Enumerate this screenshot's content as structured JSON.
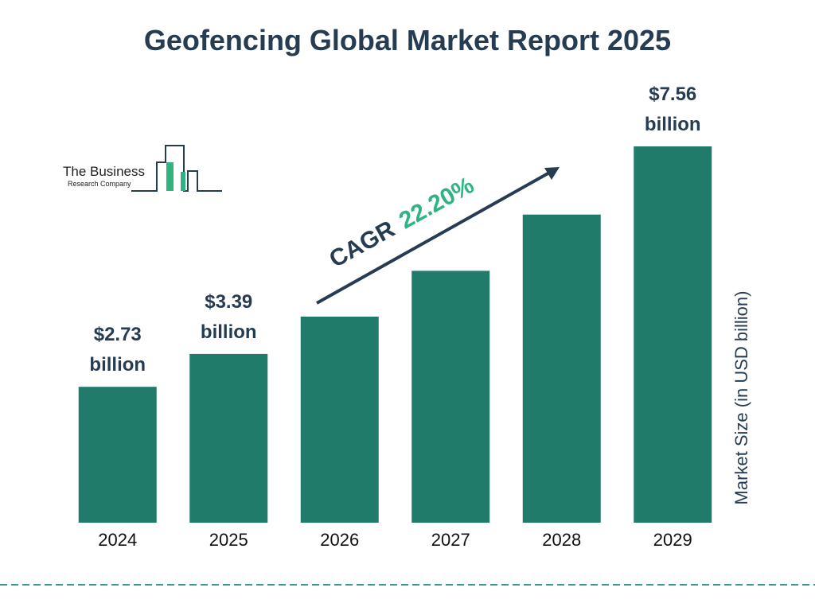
{
  "chart_data": {
    "type": "bar",
    "title": "Geofencing Global Market Report 2025",
    "categories": [
      "2024",
      "2025",
      "2026",
      "2027",
      "2028",
      "2029"
    ],
    "values": [
      2.73,
      3.39,
      4.14,
      5.06,
      6.19,
      7.56
    ],
    "value_labels": [
      "$2.73 billion",
      "$3.39 billion",
      null,
      null,
      null,
      "$7.56 billion"
    ],
    "color": "#217b6b",
    "y_axis_label": "Market Size (in USD billion)",
    "cagr": {
      "label": "CAGR",
      "value": "22.20%"
    }
  },
  "logo": {
    "line1": "The Business",
    "line2": "Research Company"
  }
}
